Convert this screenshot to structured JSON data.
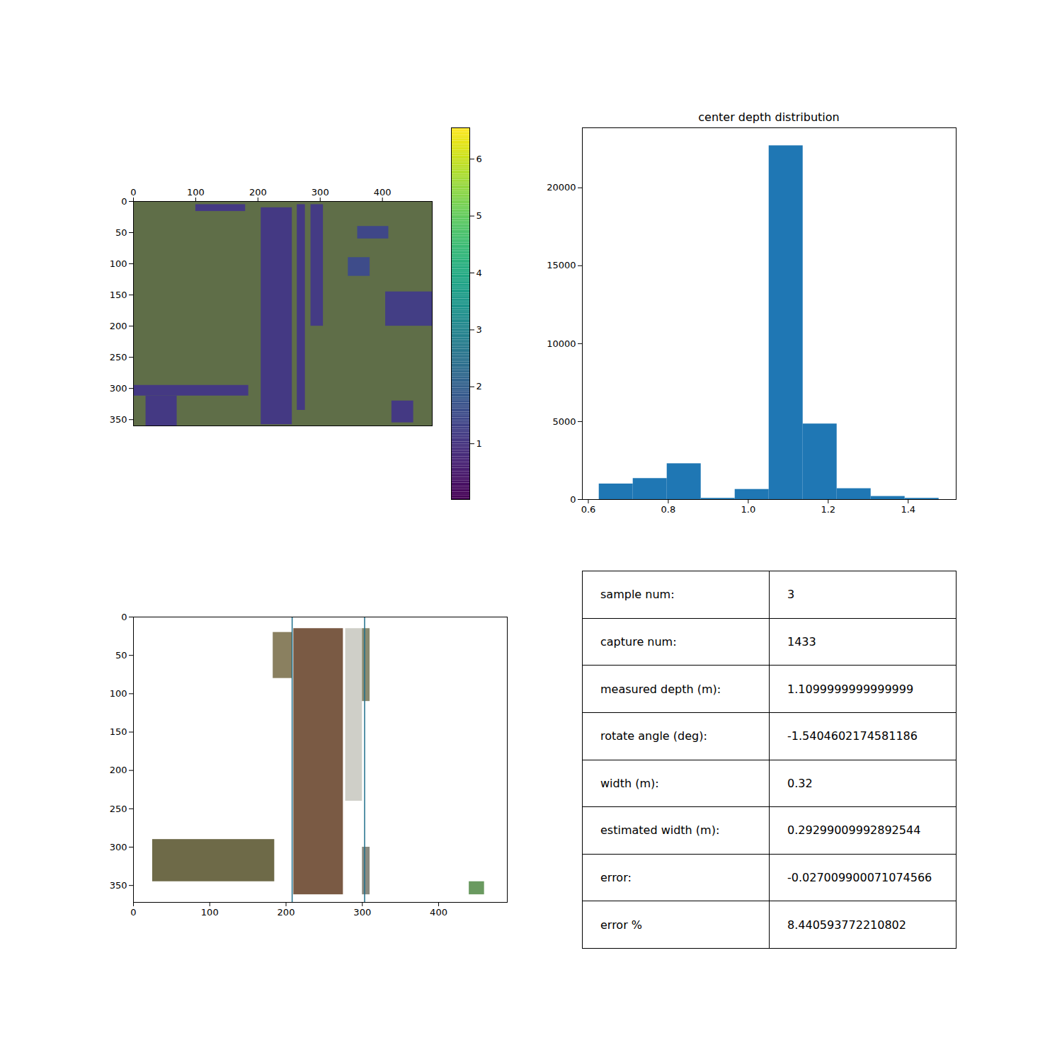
{
  "chart_data": [
    {
      "type": "image",
      "xlim": [
        0,
        480
      ],
      "ylim": [
        360,
        0
      ],
      "xticks": [
        0,
        100,
        200,
        300,
        400
      ],
      "yticks": [
        0,
        50,
        100,
        150,
        200,
        250,
        300,
        350
      ],
      "regions": [
        {
          "x": [
            205,
            255
          ],
          "y": [
            10,
            358
          ],
          "depth": 1.1
        },
        {
          "x": [
            263,
            276
          ],
          "y": [
            5,
            335
          ],
          "depth": 1.1
        },
        {
          "x": [
            285,
            305
          ],
          "y": [
            5,
            200
          ],
          "depth": 1.15
        },
        {
          "x": [
            100,
            180
          ],
          "y": [
            5,
            16
          ],
          "depth": 1.1
        },
        {
          "x": [
            360,
            410
          ],
          "y": [
            40,
            60
          ],
          "depth": 1.4
        },
        {
          "x": [
            345,
            380
          ],
          "y": [
            90,
            120
          ],
          "depth": 1.5
        },
        {
          "x": [
            405,
            480
          ],
          "y": [
            145,
            200
          ],
          "depth": 1.2
        },
        {
          "x": [
            0,
            185
          ],
          "y": [
            295,
            312
          ],
          "depth": 1.1
        },
        {
          "x": [
            20,
            70
          ],
          "y": [
            312,
            360
          ],
          "depth": 1.1
        },
        {
          "x": [
            415,
            450
          ],
          "y": [
            320,
            355
          ],
          "depth": 1.1
        }
      ],
      "colorbar": {
        "range": [
          0.02,
          6.55
        ],
        "ticks": [
          1,
          2,
          3,
          4,
          5,
          6
        ]
      }
    },
    {
      "type": "histogram",
      "title": "center depth distribution",
      "bins": [
        0.627,
        0.712,
        0.797,
        0.882,
        0.967,
        1.052,
        1.137,
        1.222,
        1.307,
        1.392,
        1.477
      ],
      "counts": [
        1000,
        1350,
        2300,
        80,
        650,
        22700,
        4850,
        700,
        200,
        80
      ],
      "color": "#1f77b4",
      "xlim": [
        0.585,
        1.52
      ],
      "ylim": [
        0,
        23850
      ],
      "xticks": [
        {
          "value": 0.6,
          "label": "0.6"
        },
        {
          "value": 0.8,
          "label": "0.8"
        },
        {
          "value": 1.0,
          "label": "1.0"
        },
        {
          "value": 1.2,
          "label": "1.2"
        },
        {
          "value": 1.4,
          "label": "1.4"
        }
      ],
      "yticks": [
        0,
        5000,
        10000,
        15000,
        20000
      ]
    },
    {
      "type": "image",
      "xlim": [
        0,
        490
      ],
      "ylim": [
        372,
        0
      ],
      "xticks": [
        0,
        100,
        200,
        300,
        400
      ],
      "yticks": [
        0,
        50,
        100,
        150,
        200,
        250,
        300,
        350
      ],
      "regions": [
        {
          "x": [
            210,
            275
          ],
          "y": [
            15,
            362
          ],
          "color": "#7a5a44"
        },
        {
          "x": [
            278,
            300
          ],
          "y": [
            15,
            240
          ],
          "color": "#cfcfc8"
        },
        {
          "x": [
            183,
            208
          ],
          "y": [
            20,
            80
          ],
          "color": "#8a8060"
        },
        {
          "x": [
            300,
            310
          ],
          "y": [
            15,
            110
          ],
          "color": "#8a8a70"
        },
        {
          "x": [
            300,
            310
          ],
          "y": [
            300,
            362
          ],
          "color": "#8a8a80"
        },
        {
          "x": [
            25,
            185
          ],
          "y": [
            290,
            345
          ],
          "color": "#6e6a48"
        },
        {
          "x": [
            440,
            460
          ],
          "y": [
            345,
            362
          ],
          "color": "#6a9a60"
        }
      ],
      "vlines": [
        208,
        303
      ],
      "color": "#1f6f8b"
    }
  ],
  "table": {
    "rows": [
      [
        "sample num:",
        "3"
      ],
      [
        "capture num:",
        "1433"
      ],
      [
        "measured depth (m):",
        "1.1099999999999999"
      ],
      [
        "rotate angle (deg):",
        "-1.5404602174581186"
      ],
      [
        "width (m):",
        "0.32"
      ],
      [
        "estimated width (m):",
        "0.29299009992892544"
      ],
      [
        "error:",
        "-0.027009900071074566"
      ],
      [
        "error %",
        "8.440593772210802"
      ]
    ]
  }
}
